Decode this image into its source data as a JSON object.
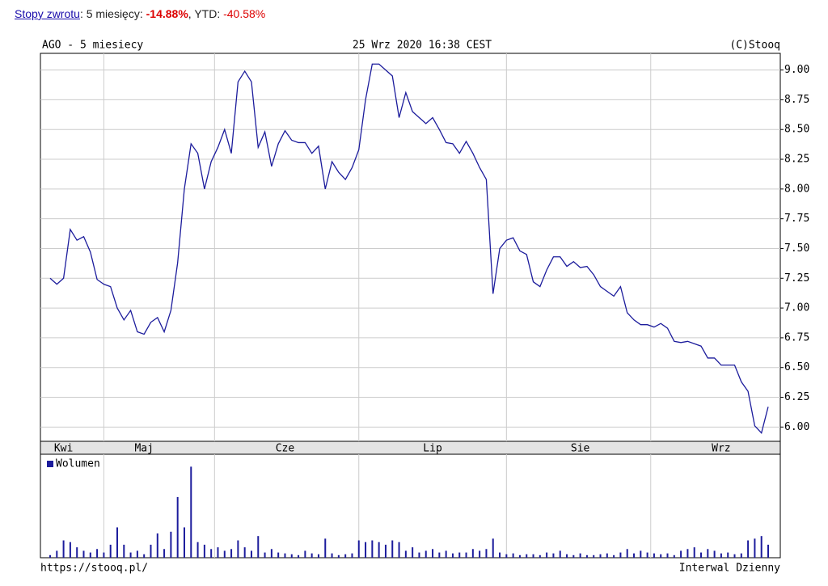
{
  "header": {
    "link": "Stopy zwrotu",
    "period": ": 5 miesięcy: ",
    "return_5m": "-14.88%",
    "ytd_label": ", YTD: ",
    "return_ytd": "-40.58%"
  },
  "chart_data": {
    "type": "line",
    "title": "AGO - 5 miesiecy",
    "timestamp": "25 Wrz 2020 16:38 CEST",
    "credit": "(C)Stooq",
    "footer_left": "https://stooq.pl/",
    "footer_right": "Interwal Dzienny",
    "grid": true,
    "categories": [
      null,
      null,
      "Kwi",
      null,
      null,
      null,
      null,
      null,
      null,
      null,
      null,
      null,
      null,
      null,
      "Maj",
      null,
      null,
      null,
      null,
      null,
      null,
      null,
      null,
      null,
      null,
      null,
      null,
      null,
      null,
      null,
      null,
      null,
      null,
      null,
      null,
      "Cze",
      null,
      null,
      null,
      null,
      null,
      null,
      null,
      null,
      null,
      null,
      null,
      null,
      null,
      null,
      null,
      null,
      null,
      null,
      null,
      null,
      null,
      "Lip",
      null,
      null,
      null,
      null,
      null,
      null,
      null,
      null,
      null,
      null,
      null,
      null,
      null,
      null,
      null,
      null,
      null,
      null,
      null,
      null,
      null,
      "Sie",
      null,
      null,
      null,
      null,
      null,
      null,
      null,
      null,
      null,
      null,
      null,
      null,
      null,
      null,
      null,
      null,
      null,
      null,
      null,
      null,
      "Wrz",
      null,
      null,
      null,
      null,
      null,
      null,
      null
    ],
    "ylim": [
      5.88,
      9.14
    ],
    "yticks": [
      {
        "value": 6,
        "label": "6.00"
      },
      {
        "value": 6.25,
        "label": "6.25"
      },
      {
        "value": 6.5,
        "label": "6.50"
      },
      {
        "value": 6.75,
        "label": "6.75"
      },
      {
        "value": 7,
        "label": "7.00"
      },
      {
        "value": 7.25,
        "label": "7.25"
      },
      {
        "value": 7.5,
        "label": "7.50"
      },
      {
        "value": 7.75,
        "label": "7.75"
      },
      {
        "value": 8,
        "label": "8.00"
      },
      {
        "value": 8.25,
        "label": "8.25"
      },
      {
        "value": 8.5,
        "label": "8.50"
      },
      {
        "value": 8.75,
        "label": "8.75"
      },
      {
        "value": 9,
        "label": "9.00"
      }
    ],
    "y2lim": [
      0,
      110
    ],
    "series": [
      {
        "color": "#1c1c9c",
        "values": [
          7.25,
          7.2,
          7.25,
          7.66,
          7.57,
          7.6,
          7.47,
          7.24,
          7.2,
          7.18,
          7.0,
          6.9,
          6.98,
          6.8,
          6.78,
          6.88,
          6.92,
          6.8,
          6.98,
          7.38,
          8.0,
          8.38,
          8.3,
          8.0,
          8.23,
          8.35,
          8.5,
          8.3,
          8.9,
          8.99,
          8.9,
          8.35,
          8.48,
          8.19,
          8.38,
          8.49,
          8.41,
          8.39,
          8.39,
          8.3,
          8.36,
          8.0,
          8.23,
          8.14,
          8.08,
          8.18,
          8.33,
          8.75,
          9.05,
          9.05,
          9.0,
          8.95,
          8.6,
          8.81,
          8.65,
          8.6,
          8.55,
          8.6,
          8.5,
          8.39,
          8.38,
          8.3,
          8.4,
          8.3,
          8.18,
          8.08,
          7.12,
          7.5,
          7.57,
          7.59,
          7.48,
          7.45,
          7.22,
          7.18,
          7.32,
          7.43,
          7.43,
          7.35,
          7.39,
          7.34,
          7.35,
          7.28,
          7.18,
          7.14,
          7.1,
          7.18,
          6.96,
          6.9,
          6.86,
          6.86,
          6.84,
          6.87,
          6.83,
          6.72,
          6.71,
          6.72,
          6.7,
          6.68,
          6.58,
          6.58,
          6.52,
          6.52,
          6.52,
          6.38,
          6.3,
          6.01,
          5.95,
          6.17
        ]
      },
      {
        "name": "Wolumen",
        "type": "bar",
        "axis": "y2",
        "color": "#1c1c9c",
        "values": [
          3,
          8,
          20,
          18,
          12,
          8,
          6,
          10,
          6,
          15,
          35,
          15,
          6,
          8,
          4,
          15,
          28,
          10,
          30,
          70,
          35,
          105,
          18,
          15,
          10,
          12,
          8,
          10,
          20,
          12,
          8,
          25,
          6,
          10,
          6,
          5,
          4,
          3,
          8,
          5,
          4,
          22,
          5,
          3,
          4,
          5,
          20,
          18,
          20,
          18,
          15,
          20,
          18,
          8,
          12,
          6,
          8,
          10,
          6,
          8,
          5,
          6,
          6,
          10,
          8,
          10,
          22,
          6,
          4,
          5,
          3,
          4,
          4,
          3,
          6,
          5,
          8,
          4,
          3,
          5,
          3,
          3,
          4,
          5,
          3,
          6,
          10,
          5,
          8,
          6,
          5,
          4,
          5,
          3,
          8,
          10,
          12,
          6,
          10,
          8,
          5,
          6,
          4,
          5,
          20,
          22,
          25,
          15
        ]
      }
    ]
  }
}
